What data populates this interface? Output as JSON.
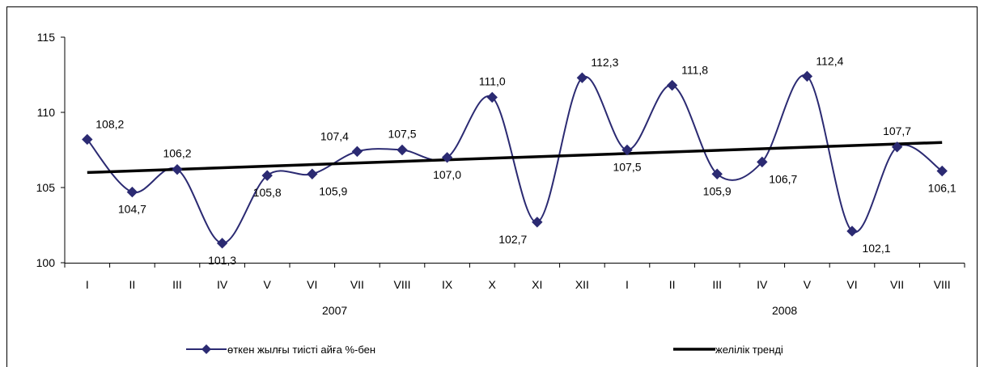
{
  "chart_data": {
    "type": "line",
    "categories": [
      "I",
      "II",
      "III",
      "IV",
      "V",
      "VI",
      "VII",
      "VIII",
      "IX",
      "X",
      "XI",
      "XII",
      "I",
      "II",
      "III",
      "IV",
      "V",
      "VI",
      "VII",
      "VIII"
    ],
    "year_groups": [
      {
        "label": "2007",
        "start": 0,
        "end": 11
      },
      {
        "label": "2008",
        "start": 12,
        "end": 19
      }
    ],
    "series": [
      {
        "name": "өткен жылғы тиісті айға %-бен",
        "values": [
          108.2,
          104.7,
          106.2,
          101.3,
          105.8,
          105.9,
          107.4,
          107.5,
          107.0,
          111.0,
          102.7,
          112.3,
          107.5,
          111.8,
          105.9,
          106.7,
          112.4,
          102.1,
          107.7,
          106.1
        ],
        "labels": [
          "108,2",
          "104,7",
          "106,2",
          "101,3",
          "105,8",
          "105,9",
          "107,4",
          "107,5",
          "107,0",
          "111,0",
          "102,7",
          "112,3",
          "107,5",
          "111,8",
          "105,9",
          "106,7",
          "112,4",
          "102,1",
          "107,7",
          "106,1"
        ],
        "label_pos": [
          "ar",
          "b",
          "a",
          "b",
          "b",
          "r",
          "al",
          "a",
          "b",
          "a",
          "bl",
          "ar",
          "b",
          "ar",
          "b",
          "r",
          "ar",
          "br",
          "a",
          "b"
        ],
        "color": "#2b2a72",
        "marker": "diamond"
      }
    ],
    "trend": {
      "name": "желілік тренді",
      "start": 106.0,
      "end": 108.0,
      "color": "#000000"
    },
    "y_ticks": [
      "100",
      "105",
      "110",
      "115"
    ],
    "ylim": [
      100,
      115
    ],
    "legend_position": "bottom"
  }
}
